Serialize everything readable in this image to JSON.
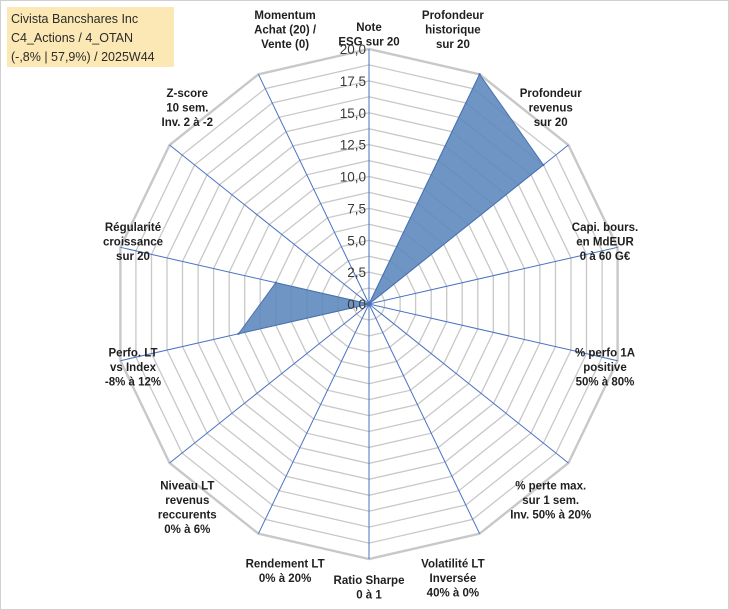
{
  "title_lines": [
    "Civista Bancshares Inc",
    "C4_Actions / 4_OTAN",
    "(-,8% | 57,9%) / 2025W44"
  ],
  "colors": {
    "grid": "#c8c8c8",
    "spoke": "#4a72c4",
    "fill": "#5b86bd",
    "stroke": "#4a72b0",
    "title_bg": "#fbe8b4"
  },
  "chart_data": {
    "type": "radar",
    "rmax": 20,
    "tick_values": [
      0,
      2.5,
      5,
      7.5,
      10,
      12.5,
      15,
      17.5,
      20
    ],
    "tick_labels": [
      "0,0",
      "2,5",
      "5,0",
      "7,5",
      "10,0",
      "12,5",
      "15,0",
      "17,5",
      "20,0"
    ],
    "grid": true,
    "axes": [
      {
        "lines": [
          "Note",
          "ESG sur 20"
        ]
      },
      {
        "lines": [
          "Profondeur",
          "historique",
          "sur 20"
        ]
      },
      {
        "lines": [
          "Profondeur",
          "revenus",
          "sur 20"
        ]
      },
      {
        "lines": [
          "Capi. bours.",
          "en MdEUR",
          "0 à 60 G€"
        ]
      },
      {
        "lines": [
          "% perfo 1A",
          "positive",
          "50% à 80%"
        ]
      },
      {
        "lines": [
          "% perte max.",
          "sur 1 sem.",
          "Inv. 50% à 20%"
        ]
      },
      {
        "lines": [
          "Volatilité LT",
          "Inversée",
          "40% à 0%"
        ]
      },
      {
        "lines": [
          "Ratio Sharpe",
          "0 à 1"
        ]
      },
      {
        "lines": [
          "Rendement LT",
          "0% à 20%"
        ]
      },
      {
        "lines": [
          "Niveau LT",
          "revenus",
          "reccurents",
          "0% à 6%"
        ]
      },
      {
        "lines": [
          "Perfo. LT",
          "vs Index",
          "-8% à 12%"
        ]
      },
      {
        "lines": [
          "Régularité",
          "croissance",
          "sur 20"
        ]
      },
      {
        "lines": [
          "Z-score",
          "10 sem.",
          "Inv. 2 à -2"
        ]
      },
      {
        "lines": [
          "Momentum",
          "Achat (20) /",
          "Vente (0)"
        ]
      }
    ],
    "values": [
      0,
      20,
      17.5,
      0,
      0,
      0,
      0,
      0,
      0,
      0,
      10.5,
      7.5,
      0,
      0
    ]
  }
}
